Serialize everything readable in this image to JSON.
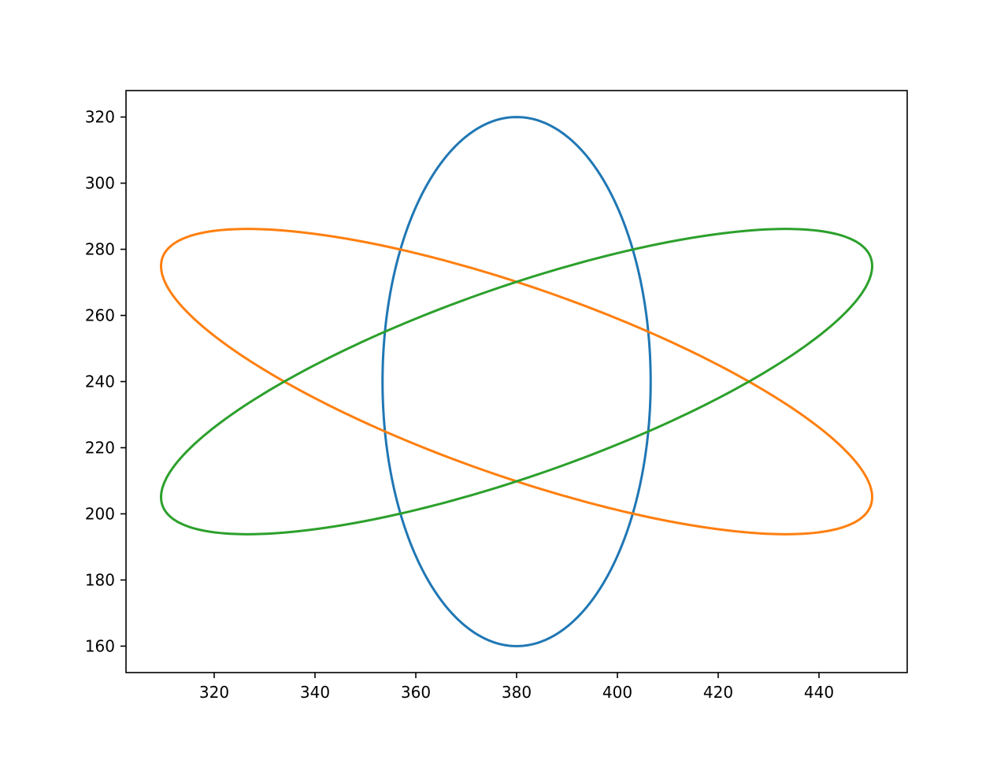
{
  "chart_data": {
    "type": "line",
    "title": "",
    "xlabel": "",
    "ylabel": "",
    "xlim": [
      302.5,
      457.5
    ],
    "ylim": [
      152,
      328
    ],
    "xticks": [
      320,
      340,
      360,
      380,
      400,
      420,
      440
    ],
    "yticks": [
      160,
      180,
      200,
      220,
      240,
      260,
      280,
      300,
      320
    ],
    "grid": false,
    "legend": "none",
    "series": [
      {
        "color": "#1f77b4",
        "shape": "ellipse",
        "center": [
          380,
          240
        ],
        "semi_axes": [
          80,
          26.6
        ],
        "major_axis_angle_deg": 90,
        "x_extent": [
          353.4,
          406.6
        ],
        "y_extent": [
          160,
          320
        ]
      },
      {
        "color": "#ff7f0e",
        "shape": "ellipse",
        "center": [
          380,
          240
        ],
        "semi_axes": [
          80,
          26.6
        ],
        "major_axis_angle_deg": -30,
        "x_extent": [
          309.5,
          450.5
        ],
        "y_extent": [
          193.9,
          286.1
        ]
      },
      {
        "color": "#2ca02c",
        "shape": "ellipse",
        "center": [
          380,
          240
        ],
        "semi_axes": [
          80,
          26.6
        ],
        "major_axis_angle_deg": 30,
        "x_extent": [
          309.5,
          450.5
        ],
        "y_extent": [
          193.9,
          286.1
        ]
      }
    ]
  }
}
